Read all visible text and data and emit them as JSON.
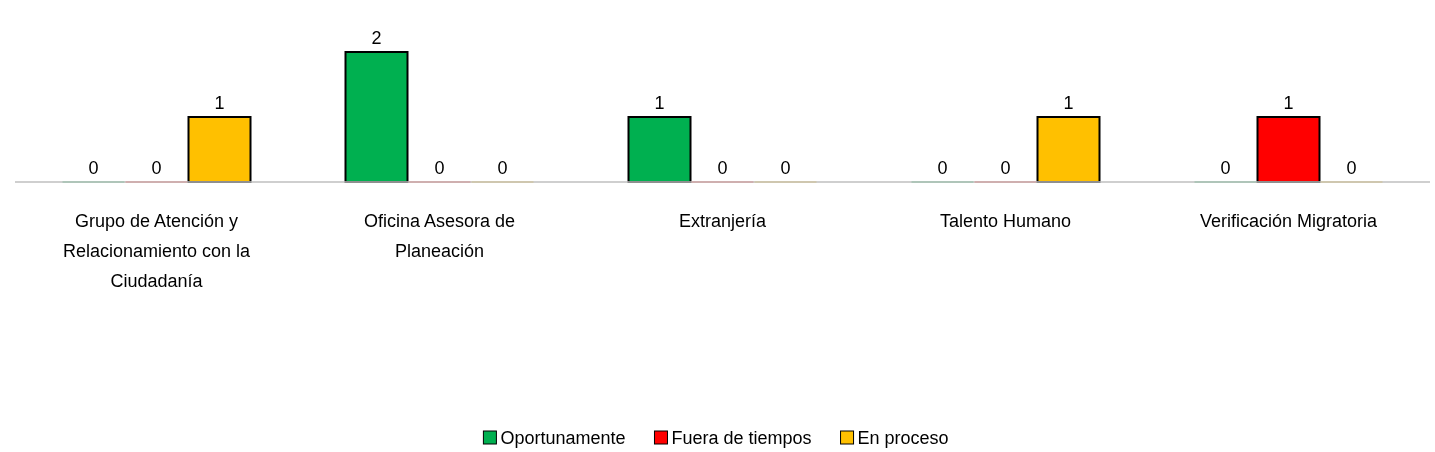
{
  "chart_data": {
    "type": "bar",
    "categories": [
      "Grupo de Atención y Relacionamiento con la Ciudadanía",
      "Oficina Asesora de Planeación",
      "Extranjería",
      "Talento Humano",
      "Verificación Migratoria"
    ],
    "series": [
      {
        "name": "Oportunamente",
        "color": "#00b050",
        "values": [
          0,
          2,
          1,
          0,
          0
        ]
      },
      {
        "name": "Fuera de tiempos",
        "color": "#ff0000",
        "values": [
          0,
          0,
          0,
          0,
          1
        ]
      },
      {
        "name": "En proceso",
        "color": "#ffc000",
        "values": [
          1,
          0,
          0,
          1,
          0
        ]
      }
    ],
    "data_labels": true,
    "legend": "bottom"
  }
}
